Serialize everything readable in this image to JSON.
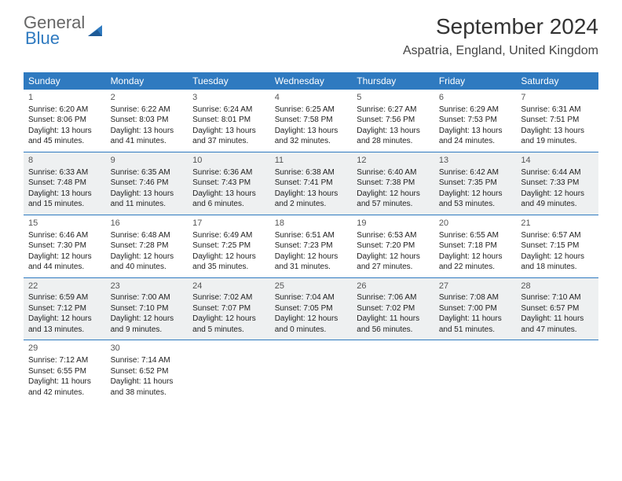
{
  "logo": {
    "word1": "General",
    "word2": "Blue"
  },
  "title": "September 2024",
  "location": "Aspatria, England, United Kingdom",
  "colors": {
    "header_bg": "#2f7ac0",
    "header_text": "#ffffff",
    "divider": "#2f7ac0",
    "alt_row_bg": "#eef0f1",
    "text": "#222222",
    "logo_grey": "#666666",
    "logo_blue": "#2f7ac0"
  },
  "typography": {
    "title_fontsize": 28,
    "location_fontsize": 16,
    "dayheader_fontsize": 12,
    "cell_fontsize": 10
  },
  "dayNames": [
    "Sunday",
    "Monday",
    "Tuesday",
    "Wednesday",
    "Thursday",
    "Friday",
    "Saturday"
  ],
  "weeks": [
    {
      "grey": false,
      "cells": [
        {
          "n": "1",
          "sr": "Sunrise: 6:20 AM",
          "ss": "Sunset: 8:06 PM",
          "dl": "Daylight: 13 hours and 45 minutes."
        },
        {
          "n": "2",
          "sr": "Sunrise: 6:22 AM",
          "ss": "Sunset: 8:03 PM",
          "dl": "Daylight: 13 hours and 41 minutes."
        },
        {
          "n": "3",
          "sr": "Sunrise: 6:24 AM",
          "ss": "Sunset: 8:01 PM",
          "dl": "Daylight: 13 hours and 37 minutes."
        },
        {
          "n": "4",
          "sr": "Sunrise: 6:25 AM",
          "ss": "Sunset: 7:58 PM",
          "dl": "Daylight: 13 hours and 32 minutes."
        },
        {
          "n": "5",
          "sr": "Sunrise: 6:27 AM",
          "ss": "Sunset: 7:56 PM",
          "dl": "Daylight: 13 hours and 28 minutes."
        },
        {
          "n": "6",
          "sr": "Sunrise: 6:29 AM",
          "ss": "Sunset: 7:53 PM",
          "dl": "Daylight: 13 hours and 24 minutes."
        },
        {
          "n": "7",
          "sr": "Sunrise: 6:31 AM",
          "ss": "Sunset: 7:51 PM",
          "dl": "Daylight: 13 hours and 19 minutes."
        }
      ]
    },
    {
      "grey": true,
      "cells": [
        {
          "n": "8",
          "sr": "Sunrise: 6:33 AM",
          "ss": "Sunset: 7:48 PM",
          "dl": "Daylight: 13 hours and 15 minutes."
        },
        {
          "n": "9",
          "sr": "Sunrise: 6:35 AM",
          "ss": "Sunset: 7:46 PM",
          "dl": "Daylight: 13 hours and 11 minutes."
        },
        {
          "n": "10",
          "sr": "Sunrise: 6:36 AM",
          "ss": "Sunset: 7:43 PM",
          "dl": "Daylight: 13 hours and 6 minutes."
        },
        {
          "n": "11",
          "sr": "Sunrise: 6:38 AM",
          "ss": "Sunset: 7:41 PM",
          "dl": "Daylight: 13 hours and 2 minutes."
        },
        {
          "n": "12",
          "sr": "Sunrise: 6:40 AM",
          "ss": "Sunset: 7:38 PM",
          "dl": "Daylight: 12 hours and 57 minutes."
        },
        {
          "n": "13",
          "sr": "Sunrise: 6:42 AM",
          "ss": "Sunset: 7:35 PM",
          "dl": "Daylight: 12 hours and 53 minutes."
        },
        {
          "n": "14",
          "sr": "Sunrise: 6:44 AM",
          "ss": "Sunset: 7:33 PM",
          "dl": "Daylight: 12 hours and 49 minutes."
        }
      ]
    },
    {
      "grey": false,
      "cells": [
        {
          "n": "15",
          "sr": "Sunrise: 6:46 AM",
          "ss": "Sunset: 7:30 PM",
          "dl": "Daylight: 12 hours and 44 minutes."
        },
        {
          "n": "16",
          "sr": "Sunrise: 6:48 AM",
          "ss": "Sunset: 7:28 PM",
          "dl": "Daylight: 12 hours and 40 minutes."
        },
        {
          "n": "17",
          "sr": "Sunrise: 6:49 AM",
          "ss": "Sunset: 7:25 PM",
          "dl": "Daylight: 12 hours and 35 minutes."
        },
        {
          "n": "18",
          "sr": "Sunrise: 6:51 AM",
          "ss": "Sunset: 7:23 PM",
          "dl": "Daylight: 12 hours and 31 minutes."
        },
        {
          "n": "19",
          "sr": "Sunrise: 6:53 AM",
          "ss": "Sunset: 7:20 PM",
          "dl": "Daylight: 12 hours and 27 minutes."
        },
        {
          "n": "20",
          "sr": "Sunrise: 6:55 AM",
          "ss": "Sunset: 7:18 PM",
          "dl": "Daylight: 12 hours and 22 minutes."
        },
        {
          "n": "21",
          "sr": "Sunrise: 6:57 AM",
          "ss": "Sunset: 7:15 PM",
          "dl": "Daylight: 12 hours and 18 minutes."
        }
      ]
    },
    {
      "grey": true,
      "cells": [
        {
          "n": "22",
          "sr": "Sunrise: 6:59 AM",
          "ss": "Sunset: 7:12 PM",
          "dl": "Daylight: 12 hours and 13 minutes."
        },
        {
          "n": "23",
          "sr": "Sunrise: 7:00 AM",
          "ss": "Sunset: 7:10 PM",
          "dl": "Daylight: 12 hours and 9 minutes."
        },
        {
          "n": "24",
          "sr": "Sunrise: 7:02 AM",
          "ss": "Sunset: 7:07 PM",
          "dl": "Daylight: 12 hours and 5 minutes."
        },
        {
          "n": "25",
          "sr": "Sunrise: 7:04 AM",
          "ss": "Sunset: 7:05 PM",
          "dl": "Daylight: 12 hours and 0 minutes."
        },
        {
          "n": "26",
          "sr": "Sunrise: 7:06 AM",
          "ss": "Sunset: 7:02 PM",
          "dl": "Daylight: 11 hours and 56 minutes."
        },
        {
          "n": "27",
          "sr": "Sunrise: 7:08 AM",
          "ss": "Sunset: 7:00 PM",
          "dl": "Daylight: 11 hours and 51 minutes."
        },
        {
          "n": "28",
          "sr": "Sunrise: 7:10 AM",
          "ss": "Sunset: 6:57 PM",
          "dl": "Daylight: 11 hours and 47 minutes."
        }
      ]
    },
    {
      "grey": false,
      "cells": [
        {
          "n": "29",
          "sr": "Sunrise: 7:12 AM",
          "ss": "Sunset: 6:55 PM",
          "dl": "Daylight: 11 hours and 42 minutes."
        },
        {
          "n": "30",
          "sr": "Sunrise: 7:14 AM",
          "ss": "Sunset: 6:52 PM",
          "dl": "Daylight: 11 hours and 38 minutes."
        },
        null,
        null,
        null,
        null,
        null
      ]
    }
  ]
}
